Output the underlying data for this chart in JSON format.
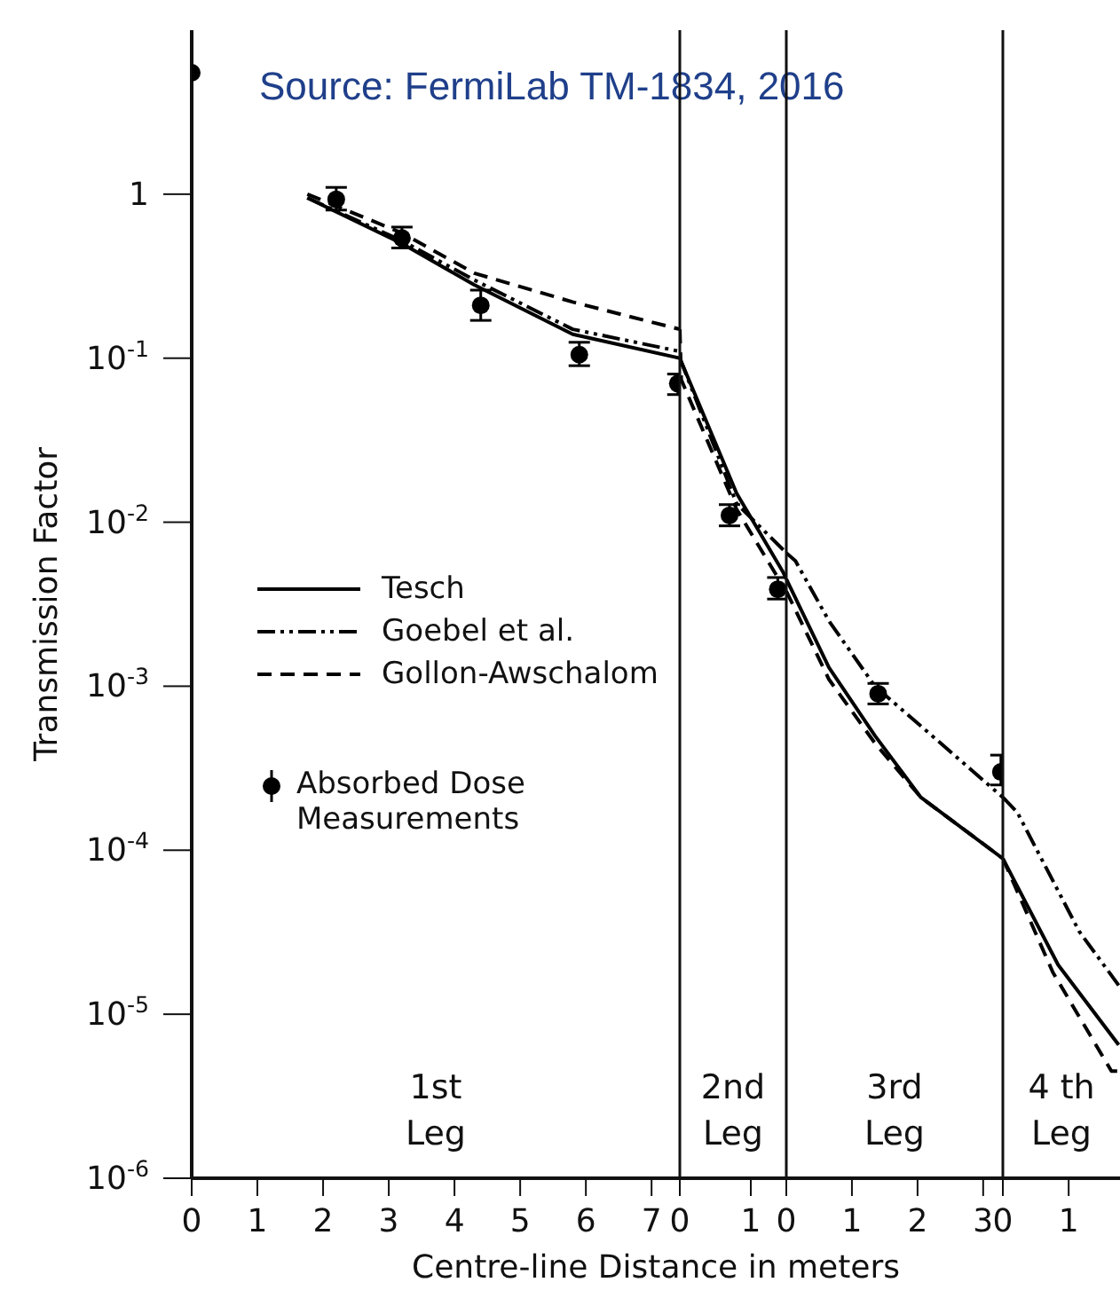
{
  "chart_data": [
    {
      "type": "line",
      "xlabel": "Centre-line Distance in meters",
      "ylabel": "Transmission Factor",
      "log": "y",
      "legend": "left",
      "xlim": [
        0,
        7.43
      ],
      "xticks": [
        0,
        1,
        2,
        3,
        4,
        5,
        6,
        7
      ],
      "ylim": [
        1e-06,
        10
      ],
      "yticks": [
        {
          "value": 1e-06,
          "label": "10$^{-6}$"
        },
        {
          "value": 1e-05,
          "label": "10$^{-5}$"
        },
        {
          "value": 0.0001,
          "label": "10$^{-4}$"
        },
        {
          "value": 0.001,
          "label": "10$^{-3}$"
        },
        {
          "value": 0.01,
          "label": "10$^{-2}$"
        },
        {
          "value": 0.1,
          "label": "10$^{-1}$"
        },
        1
      ],
      "annotations": [
        "Source: FermiLab TM-1834, 2016",
        "1st Leg"
      ],
      "series": [
        {
          "name": "Tesch",
          "type": "line",
          "line_style": "solid",
          "marker": "none",
          "color": "#000000",
          "x": [
            1.76,
            3.2,
            4.3,
            5.8,
            7.43
          ],
          "values": [
            0.95,
            0.5,
            0.28,
            0.14,
            0.1
          ]
        },
        {
          "name": "Goebel et al.",
          "type": "line",
          "line_style": "dashdot",
          "marker": "none",
          "color": "#000000",
          "x": [
            1.76,
            3.2,
            4.3,
            5.8,
            7.43
          ],
          "values": [
            0.95,
            0.52,
            0.3,
            0.15,
            0.11
          ]
        },
        {
          "name": "Gollon-Awschalom",
          "type": "line",
          "line_style": "dashed",
          "marker": "none",
          "color": "#000000",
          "x": [
            1.76,
            3.2,
            4.3,
            5.8,
            7.43
          ],
          "values": [
            1.0,
            0.58,
            0.33,
            0.22,
            0.15
          ]
        },
        {
          "name": "Absorbed Dose Measurements",
          "type": "scatter",
          "marker": "circle",
          "color": "#000000",
          "x": [
            0,
            2.2,
            3.2,
            4.4,
            5.9,
            7.4
          ],
          "values": [
            5.5,
            0.93,
            0.54,
            0.21,
            0.105,
            0.07
          ],
          "errors": [
            null,
            [
              0.8,
              1.1
            ],
            [
              0.47,
              0.63
            ],
            [
              0.17,
              0.26
            ],
            [
              0.09,
              0.125
            ],
            [
              0.06,
              0.08
            ]
          ]
        }
      ]
    },
    {
      "type": "line",
      "log": "y",
      "tick_labels": "x",
      "xlim": [
        0,
        1.5
      ],
      "xticks": [
        0,
        1
      ],
      "ylim": [
        1e-06,
        10
      ],
      "annotations": [
        "2nd Leg"
      ],
      "series": [
        {
          "type": "line",
          "line_style": "solid",
          "marker": "none",
          "color": "#000000",
          "x": [
            0,
            0.8,
            1.45,
            1.5
          ],
          "values": [
            0.1,
            0.015,
            0.005,
            0.0045
          ]
        },
        {
          "type": "line",
          "line_style": "dashdot",
          "marker": "none",
          "color": "#000000",
          "x": [
            0,
            0.8,
            1.5
          ],
          "values": [
            0.1,
            0.013,
            0.0065
          ]
        },
        {
          "type": "line",
          "line_style": "dashed",
          "marker": "none",
          "color": "#000000",
          "x": [
            0,
            0.02,
            0.8,
            1.45,
            1.5
          ],
          "values": [
            0.15,
            0.074,
            0.012,
            0.0041,
            0.0038
          ]
        },
        {
          "type": "scatter",
          "marker": "circle",
          "color": "#000000",
          "x": [
            0.7,
            1.38
          ],
          "values": [
            0.011,
            0.0039
          ],
          "errors": [
            [
              0.0095,
              0.0128
            ],
            [
              0.0034,
              0.0046
            ]
          ]
        }
      ]
    },
    {
      "type": "line",
      "log": "y",
      "tick_labels": "x",
      "xlim": [
        0,
        3.3
      ],
      "xticks": [
        0,
        1,
        2,
        3
      ],
      "ylim": [
        1e-06,
        10
      ],
      "annotations": [
        "3rd Leg"
      ],
      "series": [
        {
          "type": "line",
          "line_style": "solid",
          "marker": "none",
          "color": "#000000",
          "x": [
            0,
            0.65,
            1.35,
            2.05,
            3.3
          ],
          "values": [
            0.0045,
            0.0013,
            0.0005,
            0.00021,
            8.9e-05
          ]
        },
        {
          "type": "line",
          "line_style": "dashdot",
          "marker": "none",
          "color": "#000000",
          "x": [
            0,
            0.14,
            0.65,
            1.35,
            2.35,
            3.3
          ],
          "values": [
            0.0065,
            0.0058,
            0.0025,
            0.001,
            0.00045,
            0.00021
          ]
        },
        {
          "type": "line",
          "line_style": "dashed",
          "marker": "none",
          "color": "#000000",
          "x": [
            0,
            0.65,
            1.35,
            2.05,
            3.3
          ],
          "values": [
            0.0038,
            0.0011,
            0.00045,
            0.00021,
            8.9e-05
          ]
        },
        {
          "type": "scatter",
          "marker": "circle",
          "color": "#000000",
          "x": [
            1.4,
            3.27
          ],
          "values": [
            0.0009,
            0.0003
          ],
          "errors": [
            [
              0.00078,
              0.00104
            ],
            [
              0.00025,
              0.00038
            ]
          ]
        }
      ]
    },
    {
      "type": "line",
      "log": "y",
      "tick_labels": "x",
      "xlim": [
        0,
        1.78
      ],
      "xticks": [
        0,
        1
      ],
      "ylim": [
        1e-06,
        10
      ],
      "annotations": [
        "4 th Leg"
      ],
      "series": [
        {
          "type": "line",
          "line_style": "solid",
          "marker": "none",
          "color": "#000000",
          "x": [
            0,
            0.84,
            1.76
          ],
          "values": [
            8.9e-05,
            2e-05,
            6.5e-06
          ]
        },
        {
          "type": "line",
          "line_style": "dashdot",
          "marker": "none",
          "color": "#000000",
          "x": [
            0,
            0.22,
            1.16,
            1.76
          ],
          "values": [
            0.00021,
            0.00017,
            3.2e-05,
            1.5e-05
          ]
        },
        {
          "type": "line",
          "line_style": "dashed",
          "marker": "none",
          "color": "#000000",
          "x": [
            0,
            0.76,
            1.65,
            1.76
          ],
          "values": [
            8.9e-05,
            1.8e-05,
            4.5e-06,
            4.5e-06
          ]
        }
      ]
    }
  ]
}
